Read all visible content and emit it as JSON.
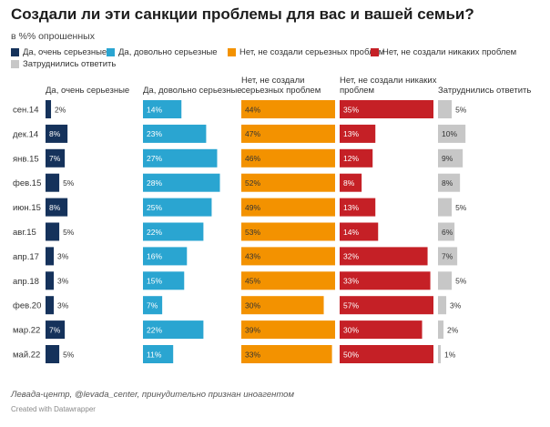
{
  "title": "Создали ли эти санкции проблемы для вас и вашей семьи?",
  "subtitle": "в %% опрошенных",
  "source_note": "Левада-центр, @levada_center, принудительно признан иноагентом",
  "credit": "Created with Datawrapper",
  "chart_data": {
    "type": "bar",
    "layout": "small multiples, horizontal bars",
    "categories": [
      "сен.14",
      "дек.14",
      "янв.15",
      "фев.15",
      "июн.15",
      "авг.15",
      "апр.17",
      "апр.18",
      "фев.20",
      "мар.22",
      "май.22"
    ],
    "series": [
      {
        "name": "Да, очень серьезные",
        "column_label": "Да, очень серьезные",
        "color": "#15325b",
        "values": [
          2,
          8,
          7,
          5,
          8,
          5,
          3,
          3,
          3,
          7,
          5
        ]
      },
      {
        "name": "Да, довольно серьезные",
        "column_label": "Да, довольно серьезные",
        "color": "#2aa5d1",
        "values": [
          14,
          23,
          27,
          28,
          25,
          22,
          16,
          15,
          7,
          22,
          11
        ]
      },
      {
        "name": "Нет, не создали серьезных проблем",
        "column_label": "Нет, не создали серьезных проблем",
        "color": "#f39200",
        "values": [
          44,
          47,
          46,
          52,
          49,
          53,
          43,
          45,
          30,
          39,
          33
        ]
      },
      {
        "name": "Нет, не создали никаких проблем",
        "column_label": "Нет, не создали никаких проблем",
        "color": "#c52026",
        "values": [
          35,
          13,
          12,
          8,
          13,
          14,
          32,
          33,
          57,
          30,
          50
        ]
      },
      {
        "name": "Затруднились ответить",
        "column_label": "Затруднились ответить",
        "color": "#c7c7c7",
        "values": [
          5,
          10,
          9,
          8,
          5,
          6,
          7,
          5,
          3,
          2,
          1
        ]
      }
    ],
    "value_suffix": "%",
    "xlim": [
      0,
      57
    ],
    "legend_position": "top",
    "grid": false
  }
}
